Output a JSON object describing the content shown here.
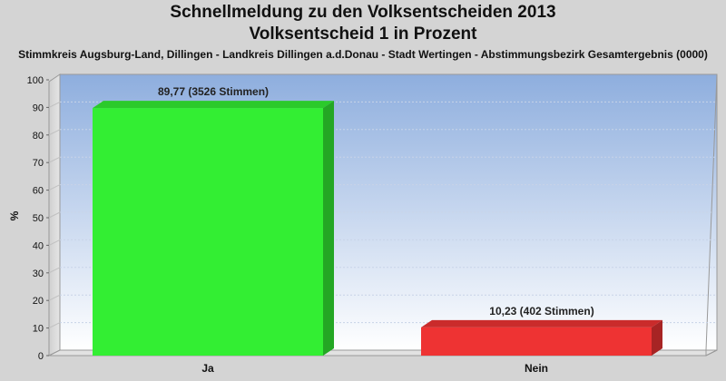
{
  "chart_data": {
    "type": "bar",
    "title": [
      "Schnellmeldung zu den Volksentscheiden 2013",
      "Volksentscheid 1 in Prozent"
    ],
    "subtitle": "Stimmkreis Augsburg-Land, Dillingen - Landkreis Dillingen a.d.Donau - Stadt Wertingen - Abstimmungsbezirk Gesamtergebnis (0000)",
    "xlabel": "",
    "ylabel": "%",
    "ylim": [
      0,
      100
    ],
    "yticks": [
      0,
      10,
      20,
      30,
      40,
      50,
      60,
      70,
      80,
      90,
      100
    ],
    "grid": true,
    "categories": [
      "Ja",
      "Nein"
    ],
    "values": [
      89.77,
      10.23
    ],
    "data_labels": [
      "89,77 (3526 Stimmen)",
      "10,23 (402 Stimmen)"
    ],
    "colors": [
      "#33ee33",
      "#ee3333"
    ]
  }
}
